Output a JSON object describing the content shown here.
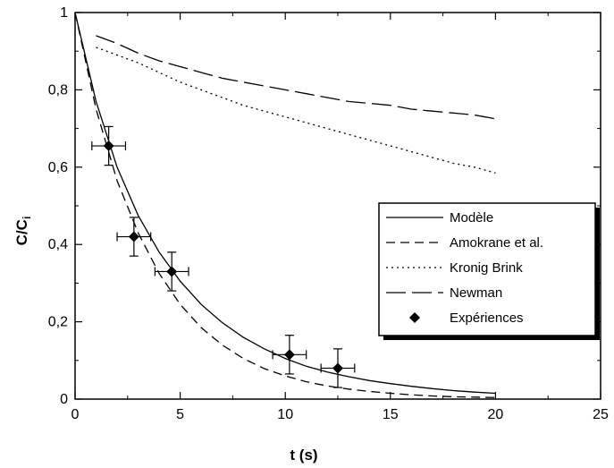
{
  "chart_data": {
    "type": "line",
    "title": "",
    "xlabel": "t (s)",
    "ylabel_main": "C/C",
    "ylabel_sub": "i",
    "xlim": [
      0,
      25
    ],
    "ylim": [
      0,
      1
    ],
    "x_ticks": [
      0,
      5,
      10,
      15,
      20,
      25
    ],
    "x_tick_labels": [
      "0",
      "5",
      "10",
      "15",
      "20",
      "25"
    ],
    "y_ticks": [
      0,
      0.2,
      0.4,
      0.6,
      0.8,
      1
    ],
    "y_tick_labels": [
      "0",
      "0,2",
      "0,4",
      "0,6",
      "0,8",
      "1"
    ],
    "grid": false,
    "legend_position": "right",
    "series": [
      {
        "name": "Modèle",
        "style": "solid",
        "x": [
          0,
          1,
          2,
          3,
          4,
          5,
          6,
          7,
          8,
          9,
          10,
          11,
          12,
          13,
          14,
          15,
          16,
          17,
          18,
          19,
          20
        ],
        "y": [
          1.0,
          0.77,
          0.6,
          0.475,
          0.38,
          0.305,
          0.245,
          0.198,
          0.16,
          0.13,
          0.105,
          0.085,
          0.07,
          0.058,
          0.048,
          0.04,
          0.033,
          0.027,
          0.022,
          0.018,
          0.015
        ]
      },
      {
        "name": "Amokrane et al.",
        "style": "dash",
        "x": [
          0,
          1,
          2,
          3,
          4,
          5,
          6,
          7,
          8,
          9,
          10,
          11,
          12,
          13,
          14,
          15,
          16,
          17,
          18,
          19,
          20
        ],
        "y": [
          1.0,
          0.75,
          0.565,
          0.43,
          0.325,
          0.245,
          0.185,
          0.14,
          0.105,
          0.079,
          0.06,
          0.045,
          0.034,
          0.026,
          0.02,
          0.015,
          0.011,
          0.008,
          0.006,
          0.005,
          0.004
        ]
      },
      {
        "name": "Kronig Brink",
        "style": "dot",
        "x": [
          1,
          2,
          3,
          4,
          5,
          6,
          7,
          8,
          9,
          10,
          11,
          12,
          13,
          14,
          15,
          16,
          17,
          18,
          19,
          20
        ],
        "y": [
          0.91,
          0.89,
          0.87,
          0.845,
          0.82,
          0.8,
          0.78,
          0.76,
          0.745,
          0.73,
          0.715,
          0.7,
          0.685,
          0.67,
          0.655,
          0.64,
          0.625,
          0.61,
          0.6,
          0.585
        ]
      },
      {
        "name": "Newman",
        "style": "longdash",
        "x": [
          1,
          2,
          3,
          4,
          5,
          6,
          7,
          8,
          9,
          10,
          11,
          12,
          13,
          14,
          15,
          16,
          17,
          18,
          19,
          20
        ],
        "y": [
          0.94,
          0.92,
          0.895,
          0.875,
          0.86,
          0.845,
          0.83,
          0.82,
          0.81,
          0.8,
          0.79,
          0.78,
          0.77,
          0.765,
          0.76,
          0.75,
          0.745,
          0.74,
          0.735,
          0.725
        ]
      }
    ],
    "points": {
      "name": "Expériences",
      "x": [
        1.6,
        2.8,
        4.6,
        10.2,
        12.5
      ],
      "y": [
        0.655,
        0.42,
        0.33,
        0.115,
        0.08
      ],
      "xerr": [
        0.8,
        0.8,
        0.8,
        0.8,
        0.8
      ],
      "yerr": [
        0.05,
        0.05,
        0.05,
        0.05,
        0.05
      ]
    },
    "legend": [
      {
        "label": "Modèle",
        "style": "solid"
      },
      {
        "label": "Amokrane et al.",
        "style": "dash"
      },
      {
        "label": "Kronig Brink",
        "style": "dot"
      },
      {
        "label": "Newman",
        "style": "longdash"
      },
      {
        "label": "Expériences",
        "style": "marker"
      }
    ]
  }
}
